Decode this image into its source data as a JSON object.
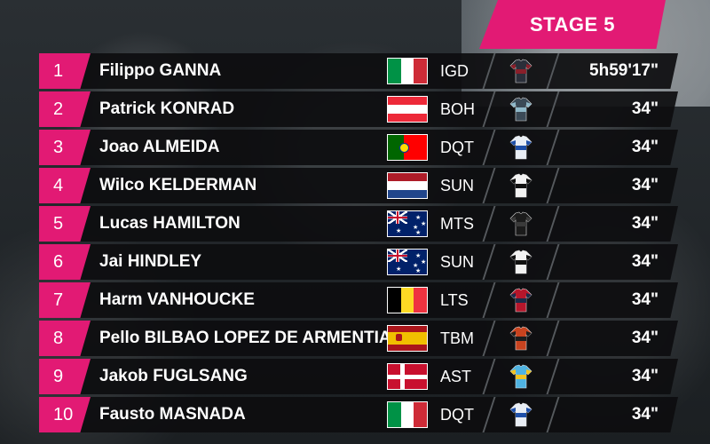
{
  "header": {
    "title": "STAGE 5"
  },
  "colors": {
    "accent": "#e21a74"
  },
  "riders": [
    {
      "pos": "1",
      "name": "Filippo GANNA",
      "flag": "italy",
      "team": "IGD",
      "jersey": "jersey-igd",
      "time": "5h59'17\""
    },
    {
      "pos": "2",
      "name": "Patrick KONRAD",
      "flag": "austria",
      "team": "BOH",
      "jersey": "jersey-boh",
      "time": "34\""
    },
    {
      "pos": "3",
      "name": "Joao ALMEIDA",
      "flag": "portugal",
      "team": "DQT",
      "jersey": "jersey-dqt",
      "time": "34\""
    },
    {
      "pos": "4",
      "name": "Wilco KELDERMAN",
      "flag": "netherlands",
      "team": "SUN",
      "jersey": "jersey-sun",
      "time": "34\""
    },
    {
      "pos": "5",
      "name": "Lucas HAMILTON",
      "flag": "australia",
      "team": "MTS",
      "jersey": "jersey-mts",
      "time": "34\""
    },
    {
      "pos": "6",
      "name": "Jai HINDLEY",
      "flag": "australia",
      "team": "SUN",
      "jersey": "jersey-sun",
      "time": "34\""
    },
    {
      "pos": "7",
      "name": "Harm VANHOUCKE",
      "flag": "belgium",
      "team": "LTS",
      "jersey": "jersey-lts",
      "time": "34\""
    },
    {
      "pos": "8",
      "name": "Pello BILBAO LOPEZ DE ARMENTIA",
      "flag": "spain",
      "team": "TBM",
      "jersey": "jersey-tbm",
      "time": "34\""
    },
    {
      "pos": "9",
      "name": "Jakob FUGLSANG",
      "flag": "denmark",
      "team": "AST",
      "jersey": "jersey-ast",
      "time": "34\""
    },
    {
      "pos": "10",
      "name": "Fausto MASNADA",
      "flag": "italy",
      "team": "DQT",
      "jersey": "jersey-dqt",
      "time": "34\""
    }
  ]
}
